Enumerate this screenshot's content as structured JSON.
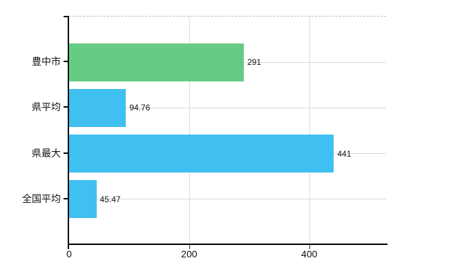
{
  "chart_data": {
    "type": "bar",
    "orientation": "horizontal",
    "title": "",
    "xlabel": "",
    "ylabel": "",
    "categories": [
      "豊中市",
      "県平均",
      "県最大",
      "全国平均"
    ],
    "values": [
      291,
      94.76,
      441,
      45.47
    ],
    "value_labels": [
      "291",
      "94.76",
      "441",
      "45.47"
    ],
    "bar_colors": [
      "#66cc84",
      "#3fc0f0",
      "#3fc0f0",
      "#3fc0f0"
    ],
    "x_ticks": [
      0,
      200,
      400
    ],
    "xlim": [
      0,
      528
    ],
    "grid": true,
    "legend": "none"
  },
  "colors": {
    "bar_highlight": "#66cc84",
    "bar_default": "#3fc0f0",
    "axis": "#000000",
    "h_gridline": "#d2dcd2",
    "v_gridline": "#d9ded9",
    "top_border_dashed": "#bdbdbd",
    "text": "#111111",
    "background": "#ffffff"
  }
}
